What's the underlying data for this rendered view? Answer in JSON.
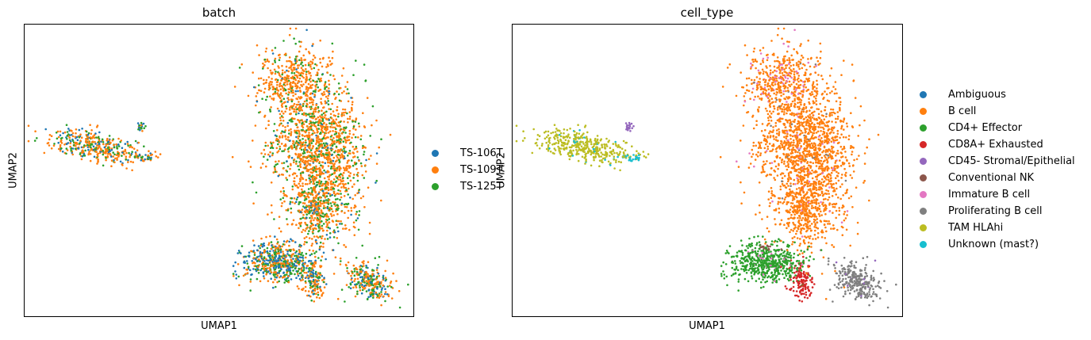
{
  "chart_data": [
    {
      "type": "scatter",
      "title": "batch",
      "xlabel": "UMAP1",
      "ylabel": "UMAP2",
      "grid": false,
      "legend_position": "right",
      "series": [
        {
          "name": "TS-106T",
          "color": "#1f77b4"
        },
        {
          "name": "TS-109T",
          "color": "#ff7f0e"
        },
        {
          "name": "TS-125T",
          "color": "#2ca02c"
        }
      ]
    },
    {
      "type": "scatter",
      "title": "cell_type",
      "xlabel": "UMAP1",
      "ylabel": "UMAP2",
      "grid": false,
      "legend_position": "right",
      "series": [
        {
          "name": "Ambiguous",
          "color": "#1f77b4"
        },
        {
          "name": "B cell",
          "color": "#ff7f0e"
        },
        {
          "name": "CD4+ Effector",
          "color": "#2ca02c"
        },
        {
          "name": "CD8A+ Exhausted",
          "color": "#d62728"
        },
        {
          "name": "CD45- Stromal/Epithelial",
          "color": "#9467bd"
        },
        {
          "name": "Conventional NK",
          "color": "#8c564b"
        },
        {
          "name": "Immature B cell",
          "color": "#e377c2"
        },
        {
          "name": "Proliferating B cell",
          "color": "#7f7f7f"
        },
        {
          "name": "TAM HLAhi",
          "color": "#bcbd22"
        },
        {
          "name": "Unknown (mast?)",
          "color": "#17becf"
        }
      ]
    }
  ]
}
